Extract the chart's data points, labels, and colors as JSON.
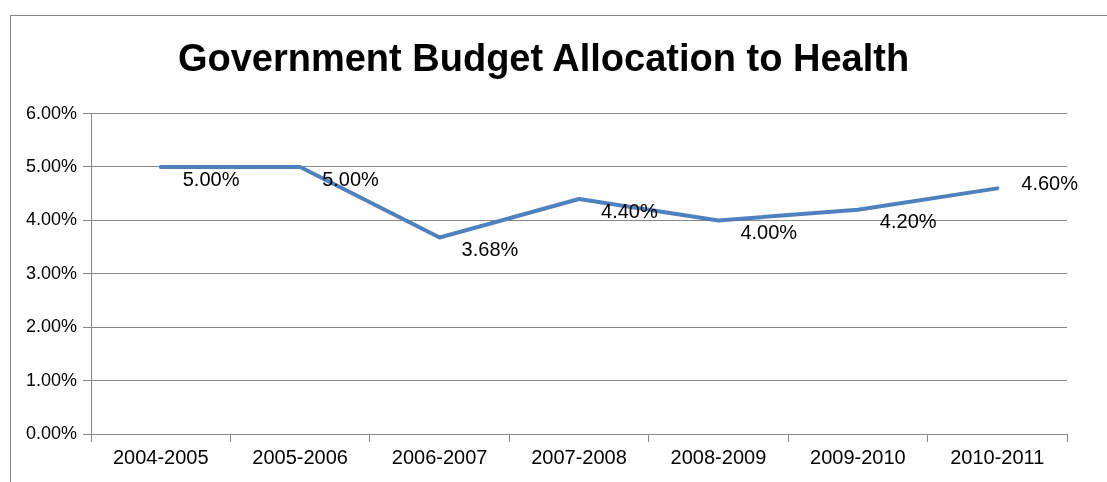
{
  "chart_data": {
    "type": "line",
    "title": "Government Budget Allocation to Health",
    "categories": [
      "2004-2005",
      "2005-2006",
      "2006-2007",
      "2007-2008",
      "2008-2009",
      "2009-2010",
      "2010-2011"
    ],
    "values": [
      5.0,
      5.0,
      3.68,
      4.4,
      4.0,
      4.2,
      4.6
    ],
    "value_labels": [
      "5.00%",
      "5.00%",
      "3.68%",
      "4.40%",
      "4.00%",
      "4.20%",
      "4.60%"
    ],
    "color": "#4f81bd",
    "ylim": [
      0,
      6
    ],
    "yticks": [
      {
        "value": 0,
        "label": "0.00%"
      },
      {
        "value": 1,
        "label": "1.00%"
      },
      {
        "value": 2,
        "label": "2.00%"
      },
      {
        "value": 3,
        "label": "3.00%"
      },
      {
        "value": 4,
        "label": "4.00%"
      },
      {
        "value": 5,
        "label": "5.00%"
      },
      {
        "value": 6,
        "label": "6.00%"
      }
    ],
    "grid": "y",
    "marker": "none",
    "line_style": "solid",
    "legend": false
  }
}
